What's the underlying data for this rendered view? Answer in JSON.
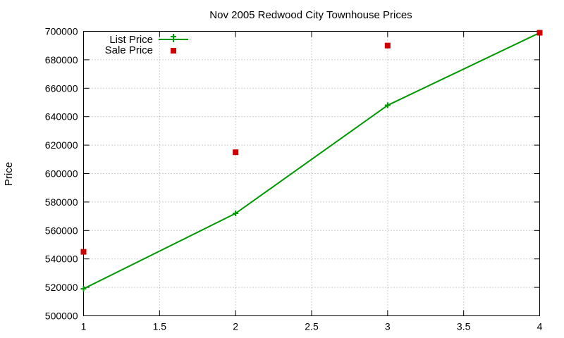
{
  "chart_data": {
    "type": "line",
    "title": "Nov 2005 Redwood City Townhouse Prices",
    "xlabel": "",
    "ylabel": "Price",
    "xlim": [
      1,
      4
    ],
    "ylim": [
      500000,
      700000
    ],
    "x_ticks": [
      "1",
      "1.5",
      "2",
      "2.5",
      "3",
      "3.5",
      "4"
    ],
    "y_ticks": [
      "500000",
      "520000",
      "540000",
      "560000",
      "580000",
      "600000",
      "620000",
      "640000",
      "660000",
      "680000",
      "700000"
    ],
    "grid": true,
    "legend_position": "top-left",
    "series": [
      {
        "name": "List Price",
        "style": "line-with-plus-markers",
        "color": "#009900",
        "x": [
          1,
          2,
          3,
          4
        ],
        "y": [
          519000,
          572000,
          648000,
          699000
        ]
      },
      {
        "name": "Sale Price",
        "style": "square-markers",
        "color": "#cc0000",
        "x": [
          1,
          2,
          3,
          4
        ],
        "y": [
          545000,
          615000,
          690000,
          699000
        ]
      }
    ]
  }
}
